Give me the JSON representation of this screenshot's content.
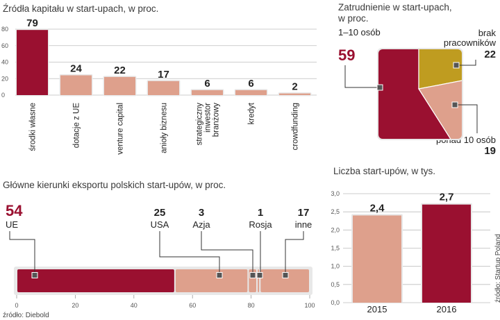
{
  "colors": {
    "primary": "#9a1030",
    "secondary": "#dea08c",
    "olive": "#bf9c20",
    "panel": "#e8e8e8",
    "grid": "#bdbdbd"
  },
  "chart_data": [
    {
      "id": "funding",
      "type": "bar",
      "title": "Źródła kapitału w start-upach, w proc.",
      "categories": [
        "środki własne",
        "dotacje z UE",
        "venture capital",
        "anioły biznesu",
        "strategiczny inwestor branżowy",
        "kredyt",
        "crowdfunding"
      ],
      "category_lines": [
        [
          "środki własne"
        ],
        [
          "dotacje z UE"
        ],
        [
          "venture capital"
        ],
        [
          "anioły biznesu"
        ],
        [
          "strategiczny",
          "inwestor",
          "branżowy"
        ],
        [
          "kredyt"
        ],
        [
          "crowdfunding"
        ]
      ],
      "values": [
        79,
        24,
        22,
        17,
        6,
        6,
        2
      ],
      "highlight": [
        0
      ],
      "ylim": [
        0,
        80
      ],
      "yticks": [
        0,
        20,
        40,
        60,
        80
      ],
      "ytick_labels": [
        "0",
        "20",
        "40",
        "60",
        "80"
      ],
      "value_labels": [
        "79",
        "24",
        "22",
        "17",
        "6",
        "6",
        "2"
      ]
    },
    {
      "id": "employment",
      "type": "pie",
      "title_lines": [
        "Zatrudnienie w start-upach,",
        "w proc."
      ],
      "slices": [
        {
          "label": "1–10 osób",
          "value": 59,
          "label_text": "59"
        },
        {
          "label_lines": [
            "brak",
            "pracowników"
          ],
          "value": 22,
          "label_text": "22"
        },
        {
          "label": "ponad 10 osób",
          "value": 19,
          "label_text": "19"
        }
      ]
    },
    {
      "id": "export",
      "type": "bar",
      "orientation": "horizontal-stacked",
      "title": "Główne kierunki eksportu polskich start-upów, w proc.",
      "categories": [
        "UE",
        "USA",
        "Azja",
        "Rosja",
        "inne"
      ],
      "values": [
        54,
        25,
        3,
        1,
        17
      ],
      "value_labels": [
        "54",
        "25",
        "3",
        "1",
        "17"
      ],
      "xlim": [
        0,
        100
      ],
      "xticks": [
        0,
        20,
        40,
        60,
        80,
        100
      ],
      "xtick_labels": [
        "0",
        "20",
        "40",
        "60",
        "80",
        "100"
      ]
    },
    {
      "id": "count",
      "type": "bar",
      "title": "Liczba start-upów, w tys.",
      "categories": [
        "2015",
        "2016"
      ],
      "values": [
        2.4,
        2.7
      ],
      "value_labels": [
        "2,4",
        "2,7"
      ],
      "ylim": [
        0,
        3.0
      ],
      "yticks": [
        0,
        0.5,
        1.0,
        1.5,
        2.0,
        2.5,
        3.0
      ],
      "ytick_labels": [
        "0,0",
        "0,5",
        "1,0",
        "1,5",
        "2,0",
        "2,5",
        "3,0"
      ]
    }
  ],
  "sources": {
    "left": "źródło: Diebold",
    "right": "źródło: Startup Poland"
  }
}
